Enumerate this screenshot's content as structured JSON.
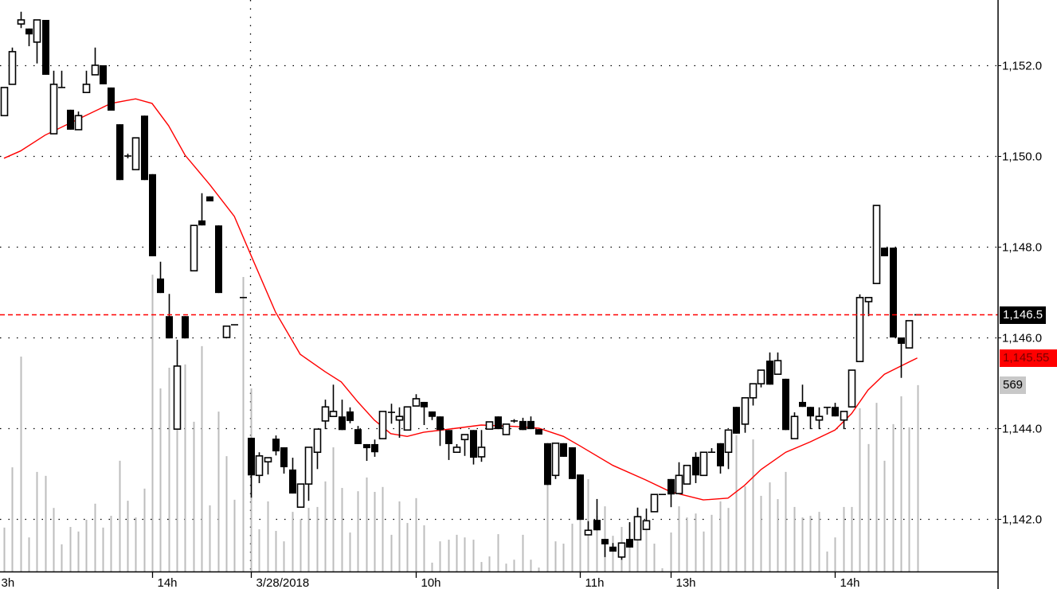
{
  "chart_data": {
    "type": "candlestick",
    "title": "",
    "ylim": [
      1140.9,
      1153.44
    ],
    "y_ticks": [
      1142,
      1144,
      1146,
      1148,
      1150,
      1152
    ],
    "y_tick_labels": [
      "1,142.0",
      "1,144.0",
      "1,146.0",
      "1,148.0",
      "1,150.0",
      "1,152.0"
    ],
    "grid": true,
    "x_tick_labels": [
      {
        "bar": -1,
        "label": "3h"
      },
      {
        "bar": 18,
        "label": "14h"
      },
      {
        "bar": 30,
        "label": "3/28/2018"
      },
      {
        "bar": 50,
        "label": "10h"
      },
      {
        "bar": 70,
        "label": "11h"
      },
      {
        "bar": 81,
        "label": "13h"
      },
      {
        "bar": 101,
        "label": "14h"
      }
    ],
    "session_separator_bar": 30,
    "candles_ohlc": [
      [
        1150.89,
        1151.51,
        1150.89,
        1151.51
      ],
      [
        1151.58,
        1152.39,
        1151.58,
        1152.3
      ],
      [
        1152.91,
        1153.18,
        1152.82,
        1153.0
      ],
      [
        1152.81,
        1152.81,
        1152.42,
        1152.68
      ],
      [
        1152.51,
        1153.0,
        1152.04,
        1153.0
      ],
      [
        1153.0,
        1153.0,
        1151.79,
        1151.79
      ],
      [
        1150.49,
        1151.88,
        1150.49,
        1151.58
      ],
      [
        1151.51,
        1151.88,
        1151.51,
        1151.51
      ],
      [
        1151.02,
        1151.02,
        1150.58,
        1150.58
      ],
      [
        1150.58,
        1150.98,
        1150.58,
        1150.89
      ],
      [
        1151.4,
        1151.88,
        1151.4,
        1151.58
      ],
      [
        1151.79,
        1152.39,
        1151.79,
        1152.0
      ],
      [
        1152.0,
        1152.0,
        1151.58,
        1151.58
      ],
      [
        1151.51,
        1151.51,
        1151.0,
        1151.0
      ],
      [
        1150.7,
        1150.7,
        1149.47,
        1149.47
      ],
      [
        1150.0,
        1150.05,
        1149.95,
        1150.0
      ],
      [
        1149.7,
        1150.4,
        1149.7,
        1150.4
      ],
      [
        1150.89,
        1150.89,
        1149.47,
        1149.47
      ],
      [
        1149.6,
        1149.6,
        1147.79,
        1147.79
      ],
      [
        1147.3,
        1147.67,
        1146.98,
        1146.98
      ],
      [
        1146.47,
        1146.96,
        1145.98,
        1145.98
      ],
      [
        1143.98,
        1145.95,
        1143.98,
        1145.37
      ],
      [
        1146.47,
        1146.47,
        1145.98,
        1145.98
      ],
      [
        1147.47,
        1148.47,
        1147.47,
        1148.47
      ],
      [
        1148.58,
        1149.18,
        1148.47,
        1148.47
      ],
      [
        1149.11,
        1149.11,
        1149.0,
        1149.0
      ],
      [
        1148.47,
        1148.47,
        1146.98,
        1146.98
      ],
      [
        1146.0,
        1146.25,
        1146.0,
        1146.25
      ],
      [
        1146.28,
        1146.28,
        1146.28,
        1146.28
      ],
      [
        1146.88,
        1146.88,
        1146.88,
        1146.88
      ],
      [
        1143.79,
        1143.79,
        1142.47,
        1142.96
      ],
      [
        1142.96,
        1143.47,
        1142.79,
        1143.39
      ],
      [
        1143.26,
        1143.35,
        1142.98,
        1143.35
      ],
      [
        1143.77,
        1143.84,
        1143.4,
        1143.49
      ],
      [
        1143.58,
        1143.58,
        1143.0,
        1143.14
      ],
      [
        1143.09,
        1143.35,
        1142.56,
        1142.56
      ],
      [
        1142.26,
        1142.77,
        1142.26,
        1142.77
      ],
      [
        1142.77,
        1143.58,
        1142.4,
        1143.58
      ],
      [
        1143.47,
        1143.98,
        1143.1,
        1143.98
      ],
      [
        1144.16,
        1144.63,
        1143.98,
        1144.47
      ],
      [
        1144.26,
        1144.96,
        1144.26,
        1144.37
      ],
      [
        1144.26,
        1144.63,
        1143.96,
        1143.96
      ],
      [
        1144.37,
        1144.46,
        1144.11,
        1144.16
      ],
      [
        1143.98,
        1144.05,
        1143.65,
        1143.65
      ],
      [
        1143.65,
        1143.65,
        1143.28,
        1143.56
      ],
      [
        1143.65,
        1143.75,
        1143.37,
        1143.47
      ],
      [
        1143.77,
        1144.37,
        1143.77,
        1144.37
      ],
      [
        1144.35,
        1144.54,
        1144.1,
        1144.35
      ],
      [
        1144.18,
        1144.46,
        1143.79,
        1144.26
      ],
      [
        1143.96,
        1144.47,
        1143.96,
        1144.47
      ],
      [
        1144.49,
        1144.75,
        1144.49,
        1144.65
      ],
      [
        1144.58,
        1144.58,
        1144.07,
        1144.46
      ],
      [
        1144.37,
        1144.37,
        1144.18,
        1144.25
      ],
      [
        1144.26,
        1144.26,
        1143.61,
        1143.96
      ],
      [
        1143.96,
        1143.96,
        1143.3,
        1143.65
      ],
      [
        1143.47,
        1143.65,
        1143.47,
        1143.58
      ],
      [
        1143.75,
        1143.86,
        1143.39,
        1143.86
      ],
      [
        1143.96,
        1143.96,
        1143.2,
        1143.35
      ],
      [
        1143.37,
        1143.96,
        1143.26,
        1143.58
      ],
      [
        1143.98,
        1144.14,
        1143.98,
        1144.14
      ],
      [
        1144.26,
        1144.26,
        1143.98,
        1143.98
      ],
      [
        1143.86,
        1144.09,
        1143.86,
        1144.09
      ],
      [
        1144.16,
        1144.2,
        1144.12,
        1144.16
      ],
      [
        1144.16,
        1144.23,
        1143.96,
        1143.96
      ],
      [
        1144.16,
        1144.26,
        1143.98,
        1143.98
      ],
      [
        1143.98,
        1143.98,
        1143.86,
        1143.86
      ],
      [
        1143.67,
        1143.67,
        1142.75,
        1142.75
      ],
      [
        1142.96,
        1143.67,
        1142.88,
        1143.67
      ],
      [
        1143.67,
        1143.67,
        1143.37,
        1143.37
      ],
      [
        1143.58,
        1143.58,
        1142.88,
        1142.88
      ],
      [
        1142.98,
        1142.98,
        1141.98,
        1141.98
      ],
      [
        1141.65,
        1141.95,
        1141.65,
        1141.75
      ],
      [
        1141.98,
        1142.44,
        1141.75,
        1141.75
      ],
      [
        1141.56,
        1141.56,
        1141.16,
        1141.44
      ],
      [
        1141.39,
        1141.47,
        1141.28,
        1141.28
      ],
      [
        1141.16,
        1141.47,
        1141.1,
        1141.47
      ],
      [
        1141.56,
        1141.93,
        1141.37,
        1141.37
      ],
      [
        1141.54,
        1142.25,
        1141.54,
        1142.05
      ],
      [
        1141.77,
        1142.23,
        1141.77,
        1141.96
      ],
      [
        1142.16,
        1142.54,
        1142.16,
        1142.54
      ],
      [
        1142.54,
        1142.54,
        1142.54,
        1142.54
      ],
      [
        1142.88,
        1142.88,
        1142.26,
        1142.54
      ],
      [
        1142.56,
        1143.25,
        1142.56,
        1142.96
      ],
      [
        1142.77,
        1143.18,
        1142.77,
        1143.18
      ],
      [
        1143.37,
        1143.47,
        1142.79,
        1142.96
      ],
      [
        1142.96,
        1143.47,
        1142.96,
        1143.47
      ],
      [
        1143.47,
        1143.56,
        1143.47,
        1143.47
      ],
      [
        1143.67,
        1143.67,
        1143.0,
        1143.16
      ],
      [
        1143.47,
        1143.96,
        1143.1,
        1143.96
      ],
      [
        1144.47,
        1144.47,
        1143.88,
        1143.88
      ],
      [
        1144.09,
        1144.67,
        1143.9,
        1144.67
      ],
      [
        1144.67,
        1144.98,
        1144.5,
        1144.98
      ],
      [
        1144.98,
        1145.28,
        1144.9,
        1145.28
      ],
      [
        1145.49,
        1145.67,
        1144.96,
        1144.96
      ],
      [
        1145.19,
        1145.67,
        1145.19,
        1145.49
      ],
      [
        1145.09,
        1145.09,
        1143.96,
        1143.96
      ],
      [
        1143.77,
        1144.35,
        1143.77,
        1144.26
      ],
      [
        1144.58,
        1144.96,
        1144.47,
        1144.47
      ],
      [
        1144.47,
        1144.47,
        1143.98,
        1144.26
      ],
      [
        1144.18,
        1144.46,
        1143.98,
        1144.26
      ],
      [
        1144.46,
        1144.46,
        1144.3,
        1144.46
      ],
      [
        1144.47,
        1144.56,
        1144.26,
        1144.26
      ],
      [
        1144.18,
        1144.37,
        1143.98,
        1144.37
      ],
      [
        1144.47,
        1145.28,
        1144.47,
        1145.28
      ],
      [
        1145.47,
        1146.95,
        1145.47,
        1146.88
      ],
      [
        1146.79,
        1146.88,
        1146.47,
        1146.88
      ],
      [
        1147.19,
        1148.91,
        1147.19,
        1148.91
      ],
      [
        1147.98,
        1147.98,
        1147.79,
        1147.79
      ],
      [
        1147.98,
        1147.98,
        1146.0,
        1146.0
      ],
      [
        1146.0,
        1146.0,
        1145.11,
        1145.86
      ],
      [
        1145.77,
        1146.37,
        1145.77,
        1146.37
      ],
      [
        1146.5,
        1146.5,
        1146.5,
        1146.5
      ]
    ],
    "volume": [
      134,
      318,
      656,
      104,
      304,
      292,
      194,
      83,
      136,
      122,
      158,
      207,
      134,
      170,
      338,
      216,
      165,
      253,
      906,
      559,
      622,
      627,
      632,
      457,
      688,
      202,
      488,
      352,
      219,
      899,
      559,
      129,
      214,
      124,
      92,
      182,
      160,
      194,
      197,
      275,
      379,
      255,
      119,
      245,
      287,
      243,
      258,
      112,
      214,
      148,
      224,
      141,
      27,
      92,
      97,
      112,
      104,
      97,
      29,
      46,
      114,
      24,
      36,
      112,
      36,
      12,
      267,
      92,
      85,
      146,
      287,
      282,
      170,
      199,
      109,
      136,
      148,
      194,
      150,
      85,
      10,
      119,
      199,
      165,
      177,
      122,
      173,
      214,
      194,
      416,
      260,
      403,
      231,
      272,
      221,
      304,
      197,
      165,
      170,
      182,
      61,
      104,
      197,
      197,
      498,
      389,
      515,
      338,
      450,
      535,
      440,
      569
    ],
    "moving_average": [
      [
        0,
        1149.95
      ],
      [
        2,
        1150.11
      ],
      [
        5,
        1150.46
      ],
      [
        9,
        1150.81
      ],
      [
        13,
        1151.16
      ],
      [
        16,
        1151.26
      ],
      [
        18,
        1151.16
      ],
      [
        20,
        1150.67
      ],
      [
        22,
        1150.02
      ],
      [
        25,
        1149.37
      ],
      [
        28,
        1148.67
      ],
      [
        30,
        1147.82
      ],
      [
        33,
        1146.56
      ],
      [
        36,
        1145.63
      ],
      [
        39,
        1145.25
      ],
      [
        41,
        1145.02
      ],
      [
        43,
        1144.58
      ],
      [
        45,
        1144.18
      ],
      [
        47,
        1143.88
      ],
      [
        49,
        1143.82
      ],
      [
        51,
        1143.91
      ],
      [
        55,
        1144.0
      ],
      [
        58,
        1144.07
      ],
      [
        62,
        1144.04
      ],
      [
        65,
        1144.0
      ],
      [
        68,
        1143.82
      ],
      [
        70,
        1143.61
      ],
      [
        74,
        1143.18
      ],
      [
        78,
        1142.86
      ],
      [
        81,
        1142.6
      ],
      [
        85,
        1142.42
      ],
      [
        88,
        1142.46
      ],
      [
        90,
        1142.74
      ],
      [
        92,
        1143.09
      ],
      [
        95,
        1143.47
      ],
      [
        98,
        1143.7
      ],
      [
        101,
        1143.96
      ],
      [
        103,
        1144.32
      ],
      [
        105,
        1144.84
      ],
      [
        107,
        1145.19
      ],
      [
        109,
        1145.37
      ],
      [
        111,
        1145.55
      ]
    ],
    "last_price": 1146.5,
    "last_price_label": "1,146.5",
    "ma_value": 1145.55,
    "ma_label": "1,145.55",
    "volume_last": 569,
    "volume_label": "569",
    "colors": {
      "up_body": "#ffffff",
      "down_body": "#000000",
      "wick": "#000000",
      "moving_average": "#ff0000",
      "last_price_line": "#ff0000",
      "volume": "#bdbdbd",
      "grid": "#000000"
    }
  }
}
